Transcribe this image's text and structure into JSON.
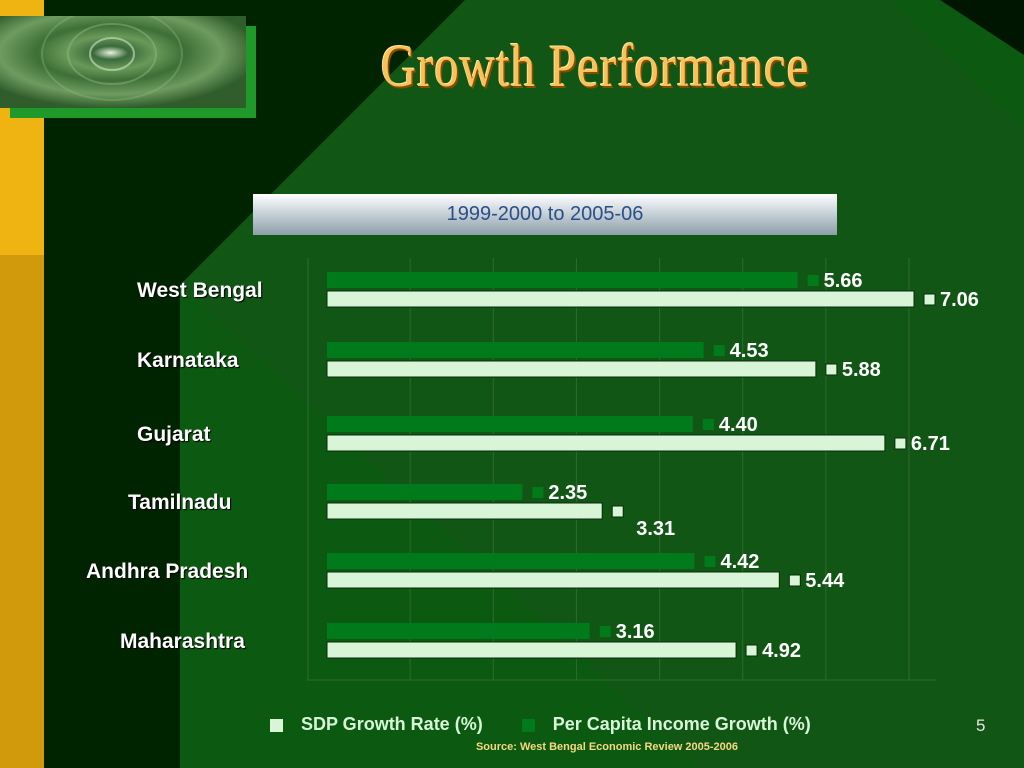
{
  "slide": {
    "title": "Growth Performance",
    "period": "1999-2000 to 2005-06",
    "source": "Source: West Bengal Economic Review 2005-2006",
    "page_number": "5"
  },
  "legend": [
    {
      "label": "SDP Growth Rate (%)",
      "color": "#d8f5d8"
    },
    {
      "label": "Per Capita Income Growth (%)",
      "color": "#007a1a"
    }
  ],
  "colors": {
    "accent_gold": "#f0b412",
    "background": "#002400",
    "sdp_bar": "#d8f5d8",
    "per_capita_bar": "#007a1a"
  },
  "chart_data": {
    "type": "bar",
    "orientation": "horizontal",
    "categories": [
      "West Bengal",
      "Karnataka",
      "Gujarat",
      "Tamilnadu",
      "Andhra Pradesh",
      "Maharashtra"
    ],
    "series": [
      {
        "name": "Per Capita Income Growth (%)",
        "values": [
          5.66,
          4.53,
          4.4,
          2.35,
          4.42,
          3.16
        ],
        "labels": [
          "5.66",
          "4.53",
          "4.40",
          "2.35",
          "4.42",
          "3.16"
        ]
      },
      {
        "name": "SDP Growth Rate (%)",
        "values": [
          7.06,
          5.88,
          6.71,
          3.31,
          5.44,
          4.92
        ],
        "labels": [
          "7.06",
          "5.88",
          "6.71",
          "3.31",
          "5.44",
          "4.92"
        ]
      }
    ],
    "xlim": [
      0,
      8
    ],
    "grid": true,
    "legend_position": "bottom"
  }
}
